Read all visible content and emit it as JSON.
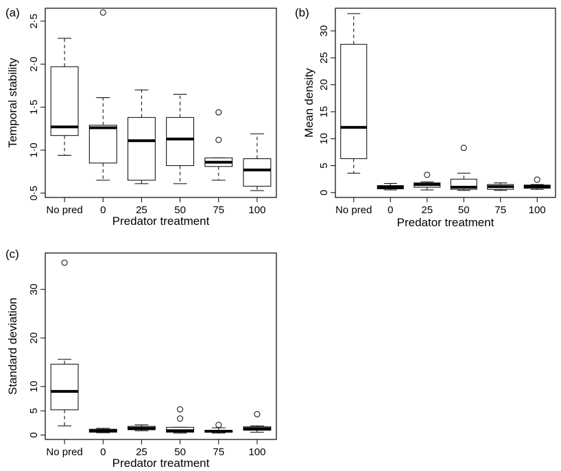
{
  "chart_data": [
    {
      "type": "boxplot",
      "panel_label": "(a)",
      "xlabel": "Predator treatment",
      "ylabel": "Temporal stability",
      "categories": [
        "No pred",
        "0",
        "25",
        "50",
        "75",
        "100"
      ],
      "yticks": [
        "0·5",
        "1·0",
        "1·5",
        "2·0",
        "2·5"
      ],
      "ytick_values": [
        0.5,
        1.0,
        1.5,
        2.0,
        2.5
      ],
      "ylim": [
        0.45,
        2.65
      ],
      "boxes": [
        {
          "category": "No pred",
          "whisker_low": 0.94,
          "q1": 1.17,
          "median": 1.27,
          "q3": 1.97,
          "whisker_high": 2.3,
          "outliers": []
        },
        {
          "category": "0",
          "whisker_low": 0.65,
          "q1": 0.85,
          "median": 1.26,
          "q3": 1.29,
          "whisker_high": 1.61,
          "outliers": [
            2.6
          ]
        },
        {
          "category": "25",
          "whisker_low": 0.61,
          "q1": 0.65,
          "median": 1.11,
          "q3": 1.38,
          "whisker_high": 1.7,
          "outliers": []
        },
        {
          "category": "50",
          "whisker_low": 0.61,
          "q1": 0.82,
          "median": 1.13,
          "q3": 1.38,
          "whisker_high": 1.65,
          "outliers": []
        },
        {
          "category": "75",
          "whisker_low": 0.65,
          "q1": 0.81,
          "median": 0.86,
          "q3": 0.91,
          "whisker_high": 0.91,
          "outliers": [
            1.12,
            1.44
          ]
        },
        {
          "category": "100",
          "whisker_low": 0.53,
          "q1": 0.58,
          "median": 0.77,
          "q3": 0.9,
          "whisker_high": 1.19,
          "outliers": []
        }
      ]
    },
    {
      "type": "boxplot",
      "panel_label": "(b)",
      "xlabel": "Predator treatment",
      "ylabel": "Mean density",
      "categories": [
        "No pred",
        "0",
        "25",
        "50",
        "75",
        "100"
      ],
      "yticks": [
        "0",
        "5",
        "10",
        "15",
        "20",
        "25",
        "30"
      ],
      "ytick_values": [
        0,
        5,
        10,
        15,
        20,
        25,
        30
      ],
      "ylim": [
        -0.9,
        34.2
      ],
      "boxes": [
        {
          "category": "No pred",
          "whisker_low": 3.6,
          "q1": 6.3,
          "median": 12.1,
          "q3": 27.5,
          "whisker_high": 33.2,
          "outliers": []
        },
        {
          "category": "0",
          "whisker_low": 0.5,
          "q1": 0.7,
          "median": 1.0,
          "q3": 1.3,
          "whisker_high": 1.7,
          "outliers": []
        },
        {
          "category": "25",
          "whisker_low": 0.5,
          "q1": 1.0,
          "median": 1.5,
          "q3": 1.8,
          "whisker_high": 2.0,
          "outliers": [
            3.3
          ]
        },
        {
          "category": "50",
          "whisker_low": 0.4,
          "q1": 0.6,
          "median": 1.0,
          "q3": 2.5,
          "whisker_high": 3.6,
          "outliers": [
            8.3
          ]
        },
        {
          "category": "75",
          "whisker_low": 0.4,
          "q1": 0.6,
          "median": 1.1,
          "q3": 1.5,
          "whisker_high": 1.8,
          "outliers": []
        },
        {
          "category": "100",
          "whisker_low": 0.6,
          "q1": 0.8,
          "median": 1.1,
          "q3": 1.4,
          "whisker_high": 1.5,
          "outliers": [
            2.4
          ]
        }
      ]
    },
    {
      "type": "boxplot",
      "panel_label": "(c)",
      "xlabel": "Predator treatment",
      "ylabel": "Standard deviation",
      "categories": [
        "No pred",
        "0",
        "25",
        "50",
        "75",
        "100"
      ],
      "yticks": [
        "0",
        "5",
        "10",
        "20",
        "30"
      ],
      "ytick_values": [
        0,
        5,
        10,
        20,
        30
      ],
      "ylim": [
        -0.9,
        37.5
      ],
      "boxes": [
        {
          "category": "No pred",
          "whisker_low": 1.9,
          "q1": 5.2,
          "median": 9.0,
          "q3": 14.6,
          "whisker_high": 15.6,
          "outliers": [
            35.5
          ]
        },
        {
          "category": "0",
          "whisker_low": 0.5,
          "q1": 0.6,
          "median": 0.9,
          "q3": 1.2,
          "whisker_high": 1.4,
          "outliers": []
        },
        {
          "category": "25",
          "whisker_low": 0.9,
          "q1": 1.1,
          "median": 1.4,
          "q3": 1.8,
          "whisker_high": 2.1,
          "outliers": []
        },
        {
          "category": "50",
          "whisker_low": 0.4,
          "q1": 0.6,
          "median": 0.9,
          "q3": 1.6,
          "whisker_high": 1.6,
          "outliers": [
            3.4,
            5.3
          ]
        },
        {
          "category": "75",
          "whisker_low": 0.4,
          "q1": 0.6,
          "median": 0.8,
          "q3": 1.0,
          "whisker_high": 1.5,
          "outliers": [
            2.1
          ]
        },
        {
          "category": "100",
          "whisker_low": 0.6,
          "q1": 1.0,
          "median": 1.3,
          "q3": 1.7,
          "whisker_high": 1.9,
          "outliers": [
            4.3
          ]
        }
      ]
    }
  ]
}
